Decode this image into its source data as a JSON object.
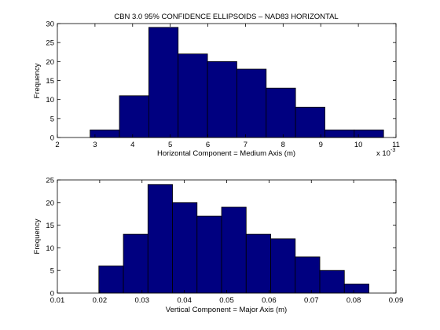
{
  "chart_data": [
    {
      "type": "bar",
      "title": "CBN 3.0 95% CONFIDENCE ELLIPSOIDS – NAD83 HORIZONTAL",
      "xlabel": "Horizontal Component = Medium Axis (m)",
      "ylabel": "Frequency",
      "x_exponent_base": "x 10",
      "x_exponent_power": "-3",
      "xlim": [
        2,
        11
      ],
      "ylim": [
        0,
        30
      ],
      "xticks": [
        "2",
        "3",
        "4",
        "5",
        "6",
        "7",
        "8",
        "9",
        "10",
        "11"
      ],
      "yticks": [
        "0",
        "5",
        "10",
        "15",
        "20",
        "25",
        "30"
      ],
      "bin_edges": [
        2.87,
        3.65,
        4.43,
        5.21,
        5.99,
        6.77,
        7.55,
        8.33,
        9.11,
        9.89,
        10.67
      ],
      "values": [
        2,
        11,
        29,
        22,
        20,
        18,
        13,
        8,
        2,
        2
      ],
      "bar_color": "#000080",
      "grid": false,
      "legend": "none"
    },
    {
      "type": "bar",
      "title": "",
      "xlabel": "Vertical Component = Major Axis (m)",
      "ylabel": "Frequency",
      "xlim": [
        0.01,
        0.09
      ],
      "ylim": [
        0,
        25
      ],
      "xticks": [
        "0.01",
        "0.02",
        "0.03",
        "0.04",
        "0.05",
        "0.06",
        "0.07",
        "0.08",
        "0.09"
      ],
      "yticks": [
        "0",
        "5",
        "10",
        "15",
        "20",
        "25"
      ],
      "bin_edges": [
        0.0198,
        0.0256,
        0.0314,
        0.0372,
        0.043,
        0.0488,
        0.0546,
        0.0604,
        0.0662,
        0.072,
        0.0778,
        0.0836
      ],
      "values": [
        6,
        13,
        24,
        20,
        17,
        19,
        13,
        12,
        8,
        5,
        2
      ],
      "bar_color": "#000080",
      "grid": false,
      "legend": "none"
    }
  ]
}
